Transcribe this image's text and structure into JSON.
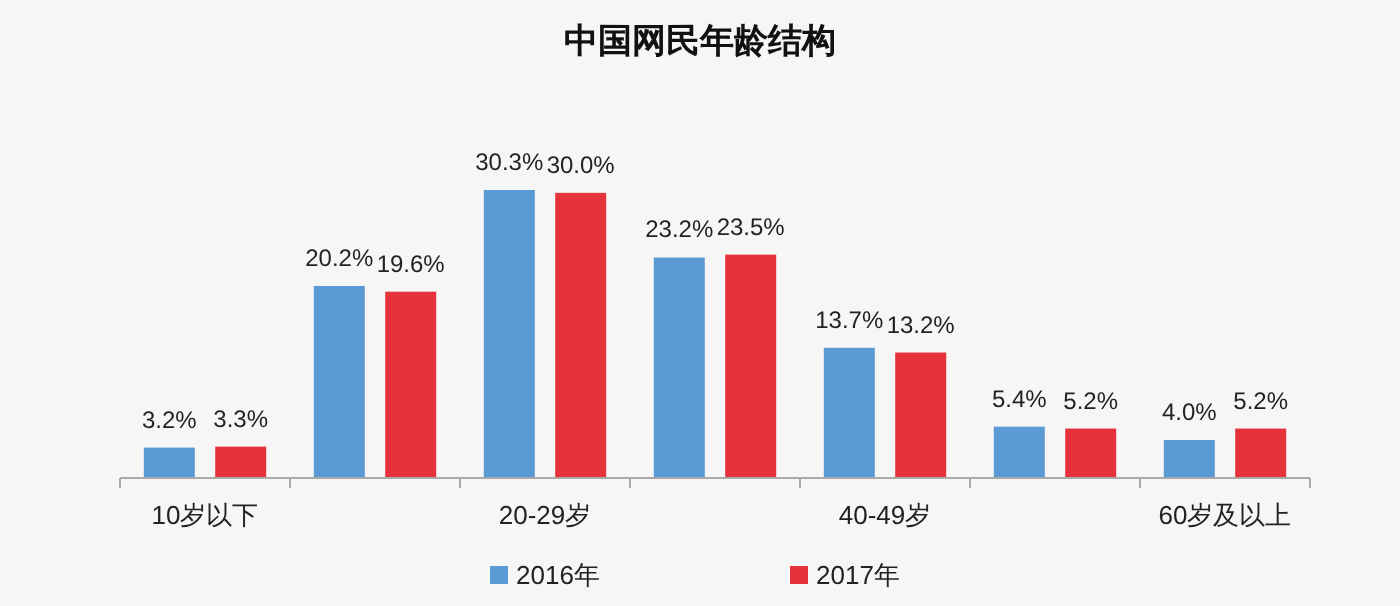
{
  "chart_data": {
    "type": "bar",
    "title": "中国网民年龄结构",
    "categories": [
      "10岁以下",
      null,
      "20-29岁",
      null,
      "40-49岁",
      null,
      "60岁及以上"
    ],
    "series": [
      {
        "name": "2016年",
        "color": "#5b9bd5",
        "values": [
          3.2,
          20.2,
          30.3,
          23.2,
          13.7,
          5.4,
          4.0
        ],
        "value_labels": [
          "3.2%",
          "20.2%",
          "30.3%",
          "23.2%",
          "13.7%",
          "5.4%",
          "4.0%"
        ]
      },
      {
        "name": "2017年",
        "color": "#e5323b",
        "values": [
          3.3,
          19.6,
          30.0,
          23.5,
          13.2,
          5.2,
          5.2
        ],
        "value_labels": [
          "3.3%",
          "19.6%",
          "30.0%",
          "23.5%",
          "13.2%",
          "5.2%",
          "5.2%"
        ]
      }
    ],
    "legend": "bottom"
  }
}
